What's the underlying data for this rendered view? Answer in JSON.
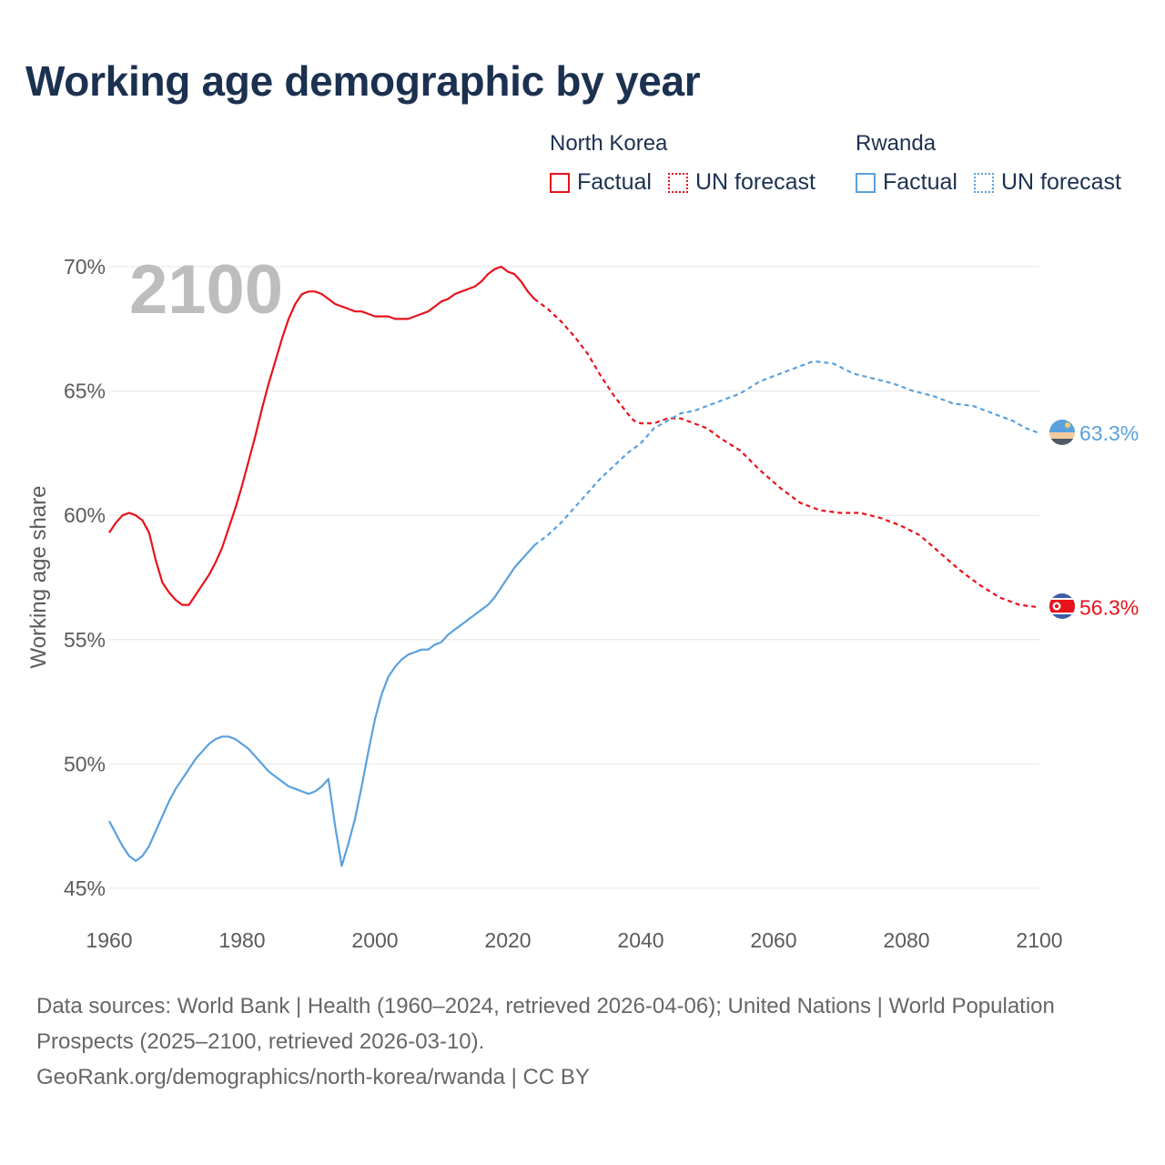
{
  "title": "Working age demographic by year",
  "legend": {
    "groups": [
      {
        "country": "North Korea",
        "factual": "Factual",
        "forecast": "UN forecast",
        "color": "#e8121b"
      },
      {
        "country": "Rwanda",
        "factual": "Factual",
        "forecast": "UN forecast",
        "color": "#5aa1dd"
      }
    ]
  },
  "footer": {
    "line1": "Data sources: World Bank | Health (1960–2024, retrieved 2026-04-06); United Nations | World Population Prospects (2025–2100, retrieved 2026-03-10).",
    "line2": "GeoRank.org/demographics/north-korea/rwanda | CC BY"
  },
  "chart_data": {
    "type": "line",
    "title": "Working age demographic by year",
    "current_year_label": "2100",
    "xlabel": "",
    "ylabel": "Working age share",
    "xlim": [
      1960,
      2100
    ],
    "ylim": [
      45,
      70
    ],
    "x_ticks": [
      "1960",
      "1980",
      "2000",
      "2020",
      "2040",
      "2060",
      "2080",
      "2100"
    ],
    "y_ticks": [
      "45%",
      "50%",
      "55%",
      "60%",
      "65%",
      "70%"
    ],
    "factual_range": [
      1960,
      2024
    ],
    "forecast_range": [
      2024,
      2100
    ],
    "series": [
      {
        "name": "North Korea",
        "color": "#e8121b",
        "end_label": "56.3%",
        "points": [
          [
            1960,
            59.3
          ],
          [
            1961,
            59.7
          ],
          [
            1962,
            60.0
          ],
          [
            1963,
            60.1
          ],
          [
            1964,
            60.0
          ],
          [
            1965,
            59.8
          ],
          [
            1966,
            59.3
          ],
          [
            1967,
            58.2
          ],
          [
            1968,
            57.3
          ],
          [
            1969,
            56.9
          ],
          [
            1970,
            56.6
          ],
          [
            1971,
            56.4
          ],
          [
            1972,
            56.4
          ],
          [
            1973,
            56.8
          ],
          [
            1974,
            57.2
          ],
          [
            1975,
            57.6
          ],
          [
            1976,
            58.1
          ],
          [
            1977,
            58.7
          ],
          [
            1978,
            59.5
          ],
          [
            1979,
            60.3
          ],
          [
            1980,
            61.2
          ],
          [
            1981,
            62.2
          ],
          [
            1982,
            63.2
          ],
          [
            1983,
            64.3
          ],
          [
            1984,
            65.3
          ],
          [
            1985,
            66.2
          ],
          [
            1986,
            67.1
          ],
          [
            1987,
            67.9
          ],
          [
            1988,
            68.5
          ],
          [
            1989,
            68.9
          ],
          [
            1990,
            69.0
          ],
          [
            1991,
            69.0
          ],
          [
            1992,
            68.9
          ],
          [
            1993,
            68.7
          ],
          [
            1994,
            68.5
          ],
          [
            1995,
            68.4
          ],
          [
            1996,
            68.3
          ],
          [
            1997,
            68.2
          ],
          [
            1998,
            68.2
          ],
          [
            1999,
            68.1
          ],
          [
            2000,
            68.0
          ],
          [
            2001,
            68.0
          ],
          [
            2002,
            68.0
          ],
          [
            2003,
            67.9
          ],
          [
            2004,
            67.9
          ],
          [
            2005,
            67.9
          ],
          [
            2006,
            68.0
          ],
          [
            2007,
            68.1
          ],
          [
            2008,
            68.2
          ],
          [
            2009,
            68.4
          ],
          [
            2010,
            68.6
          ],
          [
            2011,
            68.7
          ],
          [
            2012,
            68.9
          ],
          [
            2013,
            69.0
          ],
          [
            2014,
            69.1
          ],
          [
            2015,
            69.2
          ],
          [
            2016,
            69.4
          ],
          [
            2017,
            69.7
          ],
          [
            2018,
            69.9
          ],
          [
            2019,
            70.0
          ],
          [
            2020,
            69.8
          ],
          [
            2021,
            69.7
          ],
          [
            2022,
            69.4
          ],
          [
            2023,
            69.0
          ],
          [
            2024,
            68.7
          ],
          [
            2026,
            68.3
          ],
          [
            2028,
            67.8
          ],
          [
            2030,
            67.2
          ],
          [
            2032,
            66.5
          ],
          [
            2034,
            65.6
          ],
          [
            2036,
            64.8
          ],
          [
            2038,
            64.1
          ],
          [
            2039,
            63.8
          ],
          [
            2040,
            63.7
          ],
          [
            2042,
            63.7
          ],
          [
            2044,
            63.9
          ],
          [
            2046,
            63.9
          ],
          [
            2048,
            63.7
          ],
          [
            2050,
            63.5
          ],
          [
            2052,
            63.1
          ],
          [
            2055,
            62.6
          ],
          [
            2058,
            61.8
          ],
          [
            2061,
            61.1
          ],
          [
            2064,
            60.5
          ],
          [
            2067,
            60.2
          ],
          [
            2070,
            60.1
          ],
          [
            2073,
            60.1
          ],
          [
            2076,
            59.9
          ],
          [
            2079,
            59.6
          ],
          [
            2082,
            59.2
          ],
          [
            2085,
            58.5
          ],
          [
            2088,
            57.8
          ],
          [
            2091,
            57.2
          ],
          [
            2094,
            56.7
          ],
          [
            2097,
            56.4
          ],
          [
            2100,
            56.3
          ]
        ]
      },
      {
        "name": "Rwanda",
        "color": "#5aa1dd",
        "end_label": "63.3%",
        "points": [
          [
            1960,
            47.7
          ],
          [
            1961,
            47.2
          ],
          [
            1962,
            46.7
          ],
          [
            1963,
            46.3
          ],
          [
            1964,
            46.1
          ],
          [
            1965,
            46.3
          ],
          [
            1966,
            46.7
          ],
          [
            1967,
            47.3
          ],
          [
            1968,
            47.9
          ],
          [
            1969,
            48.5
          ],
          [
            1970,
            49.0
          ],
          [
            1971,
            49.4
          ],
          [
            1972,
            49.8
          ],
          [
            1973,
            50.2
          ],
          [
            1974,
            50.5
          ],
          [
            1975,
            50.8
          ],
          [
            1976,
            51.0
          ],
          [
            1977,
            51.1
          ],
          [
            1978,
            51.1
          ],
          [
            1979,
            51.0
          ],
          [
            1980,
            50.8
          ],
          [
            1981,
            50.6
          ],
          [
            1982,
            50.3
          ],
          [
            1983,
            50.0
          ],
          [
            1984,
            49.7
          ],
          [
            1985,
            49.5
          ],
          [
            1986,
            49.3
          ],
          [
            1987,
            49.1
          ],
          [
            1988,
            49.0
          ],
          [
            1989,
            48.9
          ],
          [
            1990,
            48.8
          ],
          [
            1991,
            48.9
          ],
          [
            1992,
            49.1
          ],
          [
            1993,
            49.4
          ],
          [
            1994,
            47.5
          ],
          [
            1995,
            45.9
          ],
          [
            1996,
            46.8
          ],
          [
            1997,
            47.8
          ],
          [
            1998,
            49.1
          ],
          [
            1999,
            50.5
          ],
          [
            2000,
            51.8
          ],
          [
            2001,
            52.8
          ],
          [
            2002,
            53.5
          ],
          [
            2003,
            53.9
          ],
          [
            2004,
            54.2
          ],
          [
            2005,
            54.4
          ],
          [
            2006,
            54.5
          ],
          [
            2007,
            54.6
          ],
          [
            2008,
            54.6
          ],
          [
            2009,
            54.8
          ],
          [
            2010,
            54.9
          ],
          [
            2011,
            55.2
          ],
          [
            2012,
            55.4
          ],
          [
            2013,
            55.6
          ],
          [
            2014,
            55.8
          ],
          [
            2015,
            56.0
          ],
          [
            2016,
            56.2
          ],
          [
            2017,
            56.4
          ],
          [
            2018,
            56.7
          ],
          [
            2019,
            57.1
          ],
          [
            2020,
            57.5
          ],
          [
            2021,
            57.9
          ],
          [
            2022,
            58.2
          ],
          [
            2023,
            58.5
          ],
          [
            2024,
            58.8
          ],
          [
            2026,
            59.2
          ],
          [
            2028,
            59.7
          ],
          [
            2030,
            60.3
          ],
          [
            2032,
            60.9
          ],
          [
            2034,
            61.5
          ],
          [
            2036,
            62.0
          ],
          [
            2038,
            62.5
          ],
          [
            2040,
            62.9
          ],
          [
            2042,
            63.5
          ],
          [
            2044,
            63.8
          ],
          [
            2046,
            64.1
          ],
          [
            2048,
            64.2
          ],
          [
            2050,
            64.4
          ],
          [
            2052,
            64.6
          ],
          [
            2055,
            64.9
          ],
          [
            2058,
            65.4
          ],
          [
            2061,
            65.7
          ],
          [
            2064,
            66.0
          ],
          [
            2066,
            66.2
          ],
          [
            2069,
            66.1
          ],
          [
            2072,
            65.7
          ],
          [
            2075,
            65.5
          ],
          [
            2078,
            65.3
          ],
          [
            2081,
            65.0
          ],
          [
            2084,
            64.8
          ],
          [
            2087,
            64.5
          ],
          [
            2090,
            64.4
          ],
          [
            2093,
            64.1
          ],
          [
            2096,
            63.8
          ],
          [
            2098,
            63.5
          ],
          [
            2100,
            63.3
          ]
        ]
      }
    ]
  }
}
